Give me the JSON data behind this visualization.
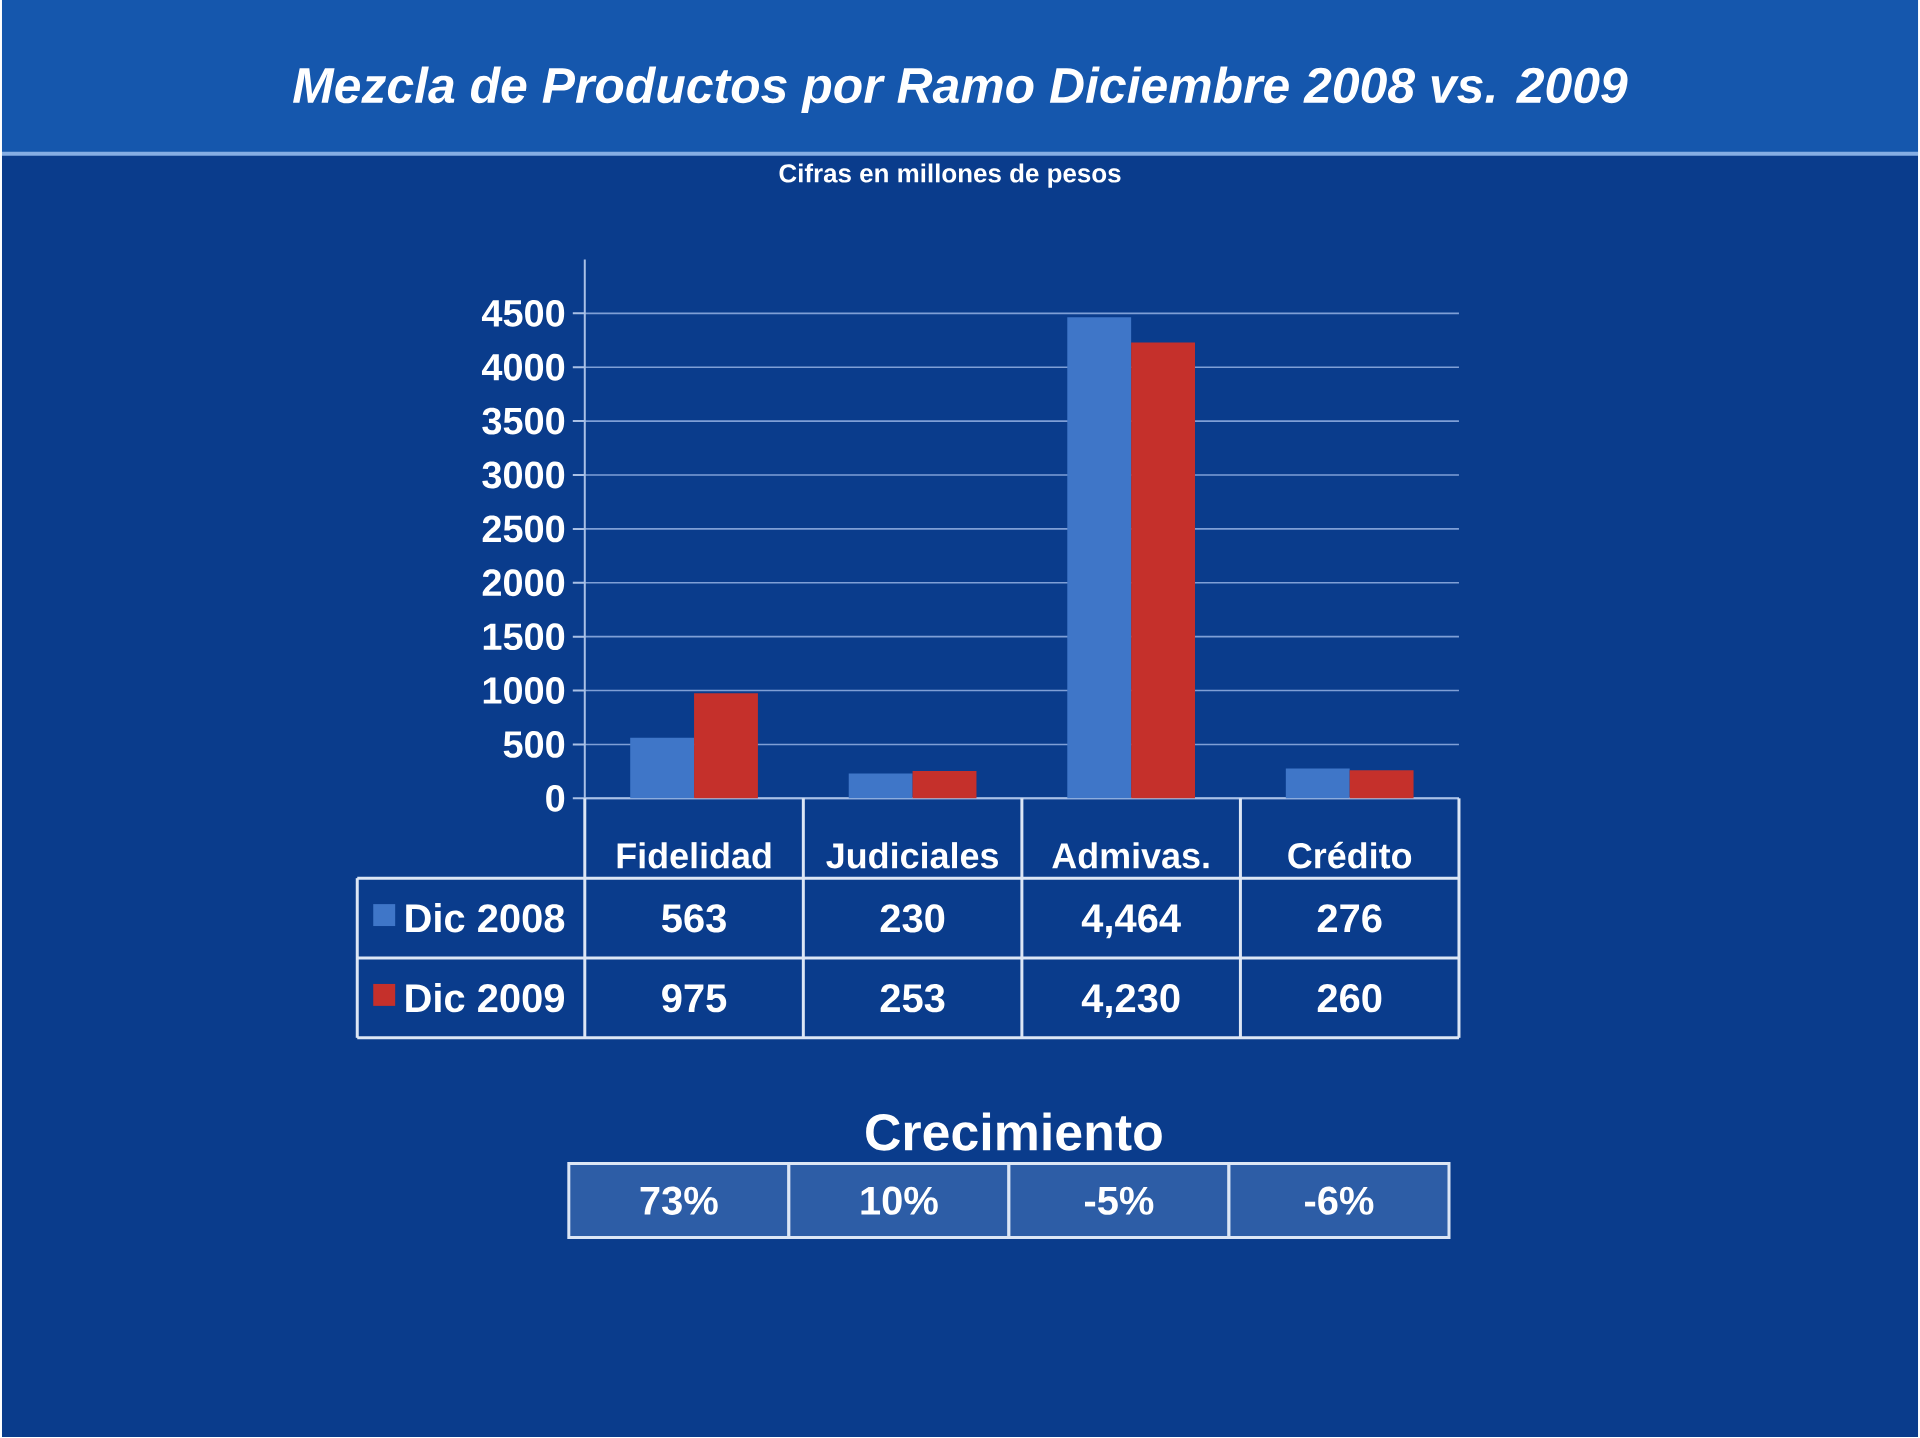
{
  "chart_data": {
    "type": "bar",
    "title": "Mezcla de Productos por Ramo Diciembre 2008 vs. 2009",
    "subtitle": "Cifras en millones de pesos",
    "categories": [
      "Fidelidad",
      "Judiciales",
      "Admivas.",
      "Crédito"
    ],
    "series": [
      {
        "name": "Dic 2008",
        "color": "#3f76c8",
        "values": [
          563,
          230,
          4464,
          276
        ],
        "value_labels": [
          "563",
          "230",
          "4,464",
          "276"
        ]
      },
      {
        "name": "Dic 2009",
        "color": "#c5302b",
        "values": [
          975,
          253,
          4230,
          260
        ],
        "value_labels": [
          "975",
          "253",
          "4,230",
          "260"
        ]
      }
    ],
    "ylim": [
      0,
      5000
    ],
    "yticks": [
      0,
      500,
      1000,
      1500,
      2000,
      2500,
      3000,
      3500,
      4000,
      4500
    ],
    "grid": "y",
    "legend": "bottom",
    "annotations": [
      "Crecimiento",
      "73%",
      "10%",
      "-5%",
      "-6%"
    ]
  }
}
